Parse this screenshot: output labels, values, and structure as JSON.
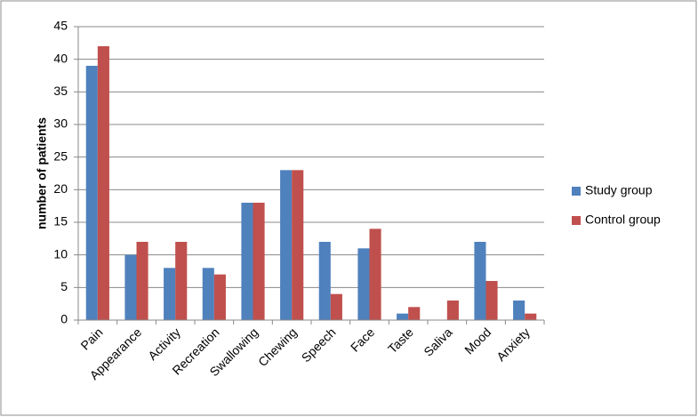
{
  "chart_data": {
    "type": "bar",
    "y_label": "number of patients",
    "categories": [
      "Pain",
      "Appearance",
      "Activity",
      "Recreation",
      "Swallowing",
      "Chewing",
      "Speech",
      "Face",
      "Taste",
      "Saliva",
      "Mood",
      "Anxiety"
    ],
    "series": [
      {
        "name": "Study group",
        "color": "#4f81bd",
        "values": [
          39,
          10,
          8,
          8,
          18,
          23,
          12,
          11,
          1,
          0,
          12,
          3
        ]
      },
      {
        "name": "Control group",
        "color": "#c0504d",
        "values": [
          42,
          12,
          12,
          7,
          18,
          23,
          4,
          14,
          2,
          3,
          6,
          1
        ]
      }
    ],
    "ylim": [
      0,
      45
    ],
    "yticks": [
      0,
      5,
      10,
      15,
      20,
      25,
      30,
      35,
      40,
      45
    ],
    "grid": true,
    "legend": "right"
  }
}
